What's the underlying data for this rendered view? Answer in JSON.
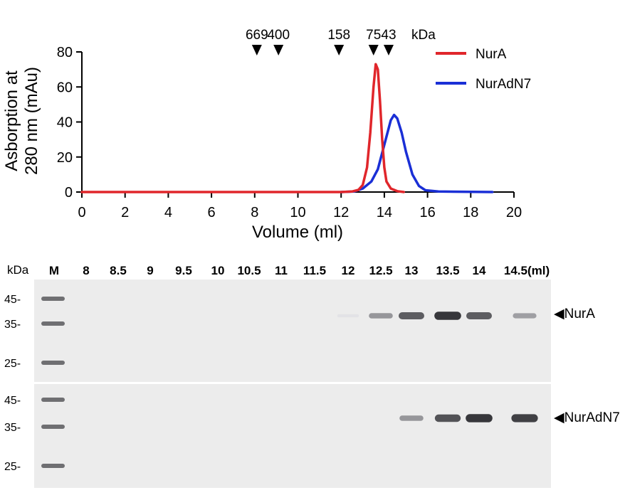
{
  "chart_data": {
    "type": "line",
    "xlabel": "Volume (ml)",
    "ylabel_lines": [
      "Asborption at",
      "280 nm (mAu)"
    ],
    "xlim": [
      0,
      20
    ],
    "ylim": [
      0,
      80
    ],
    "xticks": [
      0,
      2,
      4,
      6,
      8,
      10,
      12,
      14,
      16,
      18,
      20
    ],
    "yticks": [
      0,
      20,
      40,
      60,
      80
    ],
    "legend_position": "top-right",
    "series": [
      {
        "name": "NurA",
        "color": "#e0262b",
        "points": [
          [
            0,
            0
          ],
          [
            12.0,
            0
          ],
          [
            12.5,
            0.3
          ],
          [
            12.8,
            1.2
          ],
          [
            13.0,
            4
          ],
          [
            13.2,
            14
          ],
          [
            13.35,
            34
          ],
          [
            13.5,
            60
          ],
          [
            13.6,
            73
          ],
          [
            13.7,
            70
          ],
          [
            13.8,
            52
          ],
          [
            13.9,
            30
          ],
          [
            14.0,
            14
          ],
          [
            14.1,
            6
          ],
          [
            14.3,
            2
          ],
          [
            14.6,
            0.5
          ],
          [
            14.9,
            0
          ]
        ]
      },
      {
        "name": "NurAdN7",
        "color": "#1a2fd6",
        "points": [
          [
            12.0,
            0
          ],
          [
            12.6,
            0.3
          ],
          [
            13.0,
            2
          ],
          [
            13.4,
            6
          ],
          [
            13.7,
            13
          ],
          [
            14.0,
            27
          ],
          [
            14.3,
            41
          ],
          [
            14.45,
            44
          ],
          [
            14.6,
            42
          ],
          [
            14.8,
            34
          ],
          [
            15.0,
            23
          ],
          [
            15.3,
            10
          ],
          [
            15.6,
            3.5
          ],
          [
            15.9,
            1
          ],
          [
            16.5,
            0.3
          ],
          [
            19.0,
            0
          ]
        ]
      }
    ],
    "mw_markers": {
      "unit": "kDa",
      "items": [
        {
          "label": "669",
          "volume": 8.1
        },
        {
          "label": "400",
          "volume": 9.1
        },
        {
          "label": "158",
          "volume": 11.9
        },
        {
          "label": "75",
          "volume": 13.5
        },
        {
          "label": "43",
          "volume": 14.2
        }
      ]
    }
  },
  "gel": {
    "unit_label": "kDa",
    "marker_lane_label": "M",
    "lanes": [
      "8",
      "8.5",
      "9",
      "9.5",
      "10",
      "10.5",
      "11",
      "11.5",
      "12",
      "12.5",
      "13",
      "13.5",
      "14",
      "14.5(ml)"
    ],
    "mw_labels": [
      "45-",
      "35-",
      "25-"
    ],
    "panels": [
      {
        "band_label": "◀NurA",
        "intensities": [
          0,
          0,
          0,
          0,
          0,
          0,
          0,
          0,
          0.05,
          0.45,
          0.75,
          0.95,
          0.75,
          0.4
        ]
      },
      {
        "band_label": "◀NurAdN7",
        "intensities": [
          0,
          0,
          0,
          0,
          0,
          0,
          0,
          0,
          0,
          0,
          0.45,
          0.8,
          0.95,
          0.9
        ]
      }
    ]
  }
}
